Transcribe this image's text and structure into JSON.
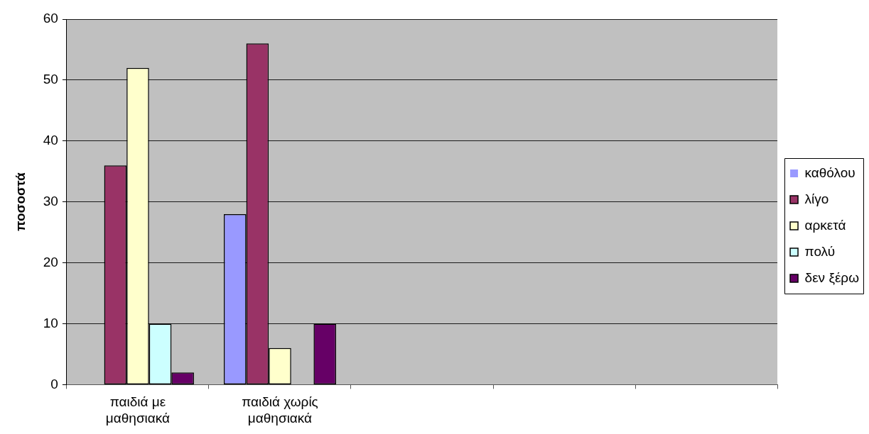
{
  "chart_data": {
    "type": "bar",
    "ylabel": "ποσοστά",
    "categories": [
      "παιδιά με μαθησιακά",
      "παιδιά χωρίς μαθησιακά",
      null,
      null,
      null
    ],
    "series": [
      {
        "name": "καθόλου",
        "color": "#9999ff",
        "values": [
          0,
          28,
          null,
          null,
          null
        ]
      },
      {
        "name": "λίγο",
        "color": "#993366",
        "values": [
          36,
          56,
          null,
          null,
          null
        ]
      },
      {
        "name": "αρκετά",
        "color": "#ffffcc",
        "values": [
          52,
          6,
          null,
          null,
          null
        ]
      },
      {
        "name": "πολύ",
        "color": "#ccffff",
        "values": [
          10,
          0,
          null,
          null,
          null
        ]
      },
      {
        "name": "δεν ξέρω",
        "color": "#660066",
        "values": [
          2,
          10,
          null,
          null,
          null
        ]
      }
    ],
    "ylim": [
      0,
      60
    ],
    "yticks": [
      0,
      10,
      20,
      30,
      40,
      50,
      60
    ],
    "grid": "y",
    "legend": "right"
  }
}
